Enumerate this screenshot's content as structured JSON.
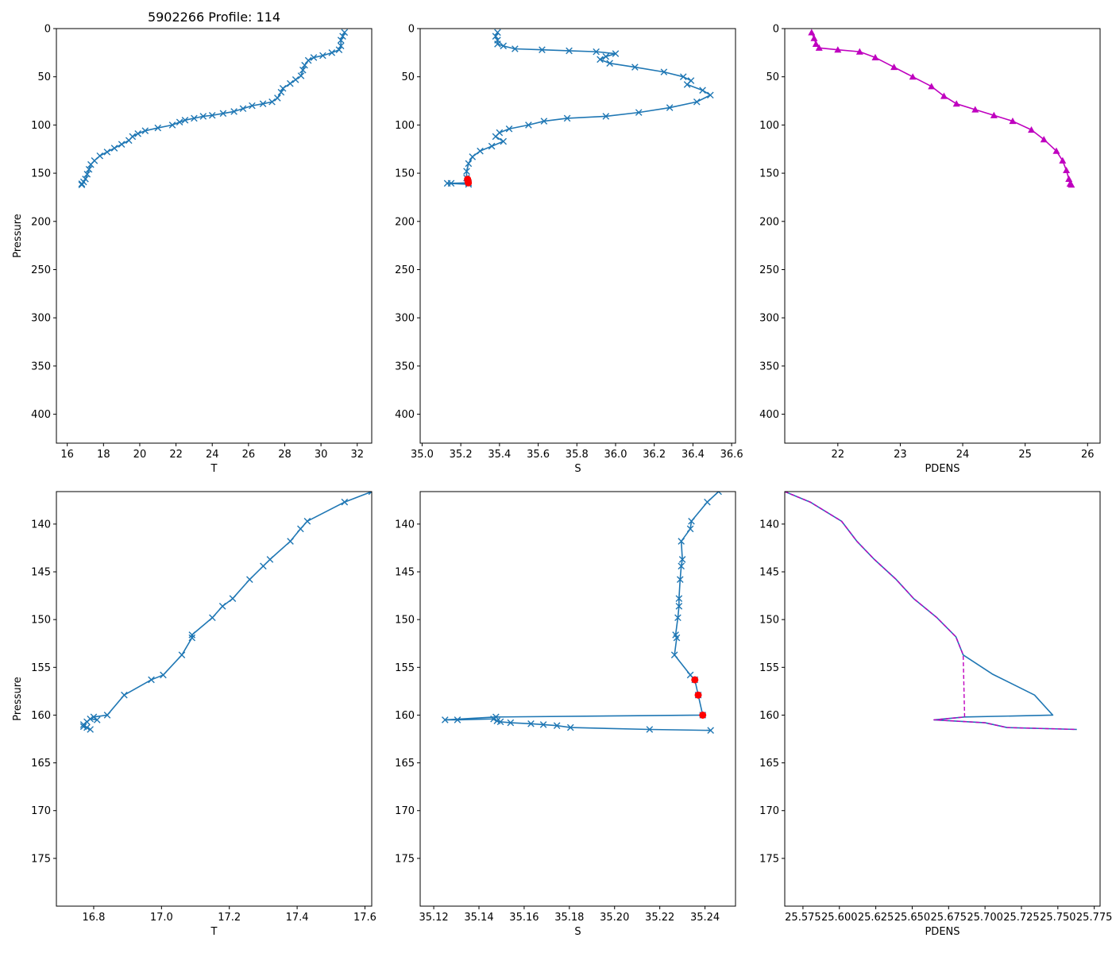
{
  "figure_title": "5902266 Profile: 114",
  "colors": {
    "line": "#1f77b4",
    "density": "#bf00bf",
    "flag": "#ff0000",
    "axes": "#000000",
    "background": "#ffffff"
  },
  "chart_data": [
    {
      "id": "temp-full",
      "type": "line",
      "title": "5902266 Profile: 114",
      "xlabel": "T",
      "ylabel": "Pressure",
      "xlim": [
        15.4,
        32.8
      ],
      "ylim": [
        430,
        0
      ],
      "xticks": [
        16,
        18,
        20,
        22,
        24,
        26,
        28,
        30,
        32
      ],
      "yticks": [
        0,
        50,
        100,
        150,
        200,
        250,
        300,
        350,
        400
      ],
      "tick_decimals": 0,
      "series": [
        {
          "name": "T",
          "marker": "x",
          "color": "#1f77b4",
          "points": [
            [
              31.3,
              4
            ],
            [
              31.2,
              8
            ],
            [
              31.1,
              12
            ],
            [
              31.1,
              18
            ],
            [
              31.0,
              22
            ],
            [
              30.6,
              25
            ],
            [
              30.1,
              28
            ],
            [
              29.6,
              30
            ],
            [
              29.3,
              33
            ],
            [
              29.1,
              38
            ],
            [
              29.0,
              43
            ],
            [
              28.9,
              49
            ],
            [
              28.6,
              53
            ],
            [
              28.3,
              57
            ],
            [
              27.9,
              62
            ],
            [
              27.8,
              66
            ],
            [
              27.6,
              72
            ],
            [
              27.3,
              76
            ],
            [
              26.8,
              78
            ],
            [
              26.2,
              80
            ],
            [
              25.7,
              83
            ],
            [
              25.2,
              86
            ],
            [
              24.6,
              88
            ],
            [
              24.0,
              90
            ],
            [
              23.5,
              91
            ],
            [
              23.0,
              93
            ],
            [
              22.5,
              95
            ],
            [
              22.2,
              97
            ],
            [
              21.8,
              100
            ],
            [
              21.0,
              103
            ],
            [
              20.3,
              106
            ],
            [
              19.9,
              109
            ],
            [
              19.6,
              112
            ],
            [
              19.4,
              116
            ],
            [
              19.0,
              120
            ],
            [
              18.6,
              124
            ],
            [
              18.2,
              128
            ],
            [
              17.8,
              132
            ],
            [
              17.5,
              137
            ],
            [
              17.3,
              141
            ],
            [
              17.2,
              146
            ],
            [
              17.1,
              151
            ],
            [
              17.0,
              156
            ],
            [
              16.9,
              159
            ],
            [
              16.8,
              161
            ],
            [
              16.8,
              162
            ]
          ]
        }
      ]
    },
    {
      "id": "sal-full",
      "type": "line",
      "title": "",
      "xlabel": "S",
      "ylabel": "",
      "xlim": [
        34.99,
        36.62
      ],
      "ylim": [
        430,
        0
      ],
      "xticks": [
        35.0,
        35.2,
        35.4,
        35.6,
        35.8,
        36.0,
        36.2,
        36.4,
        36.6
      ],
      "yticks": [
        0,
        50,
        100,
        150,
        200,
        250,
        300,
        350,
        400
      ],
      "tick_decimals": 1,
      "series": [
        {
          "name": "S",
          "marker": "x",
          "color": "#1f77b4",
          "points": [
            [
              35.39,
              4
            ],
            [
              35.38,
              8
            ],
            [
              35.39,
              12
            ],
            [
              35.39,
              16
            ],
            [
              35.42,
              18
            ],
            [
              35.48,
              21
            ],
            [
              35.62,
              22
            ],
            [
              35.76,
              23
            ],
            [
              35.9,
              24
            ],
            [
              36.0,
              26
            ],
            [
              35.95,
              29
            ],
            [
              35.92,
              32
            ],
            [
              35.97,
              36
            ],
            [
              36.1,
              40
            ],
            [
              36.25,
              45
            ],
            [
              36.35,
              50
            ],
            [
              36.39,
              54
            ],
            [
              36.37,
              58
            ],
            [
              36.45,
              64
            ],
            [
              36.49,
              69
            ],
            [
              36.42,
              76
            ],
            [
              36.28,
              82
            ],
            [
              36.12,
              87
            ],
            [
              35.95,
              91
            ],
            [
              35.75,
              93
            ],
            [
              35.63,
              96
            ],
            [
              35.55,
              100
            ],
            [
              35.45,
              104
            ],
            [
              35.4,
              108
            ],
            [
              35.38,
              112
            ],
            [
              35.42,
              117
            ],
            [
              35.36,
              122
            ],
            [
              35.3,
              127
            ],
            [
              35.26,
              133
            ],
            [
              35.24,
              140
            ],
            [
              35.23,
              148
            ],
            [
              35.23,
              155
            ],
            [
              35.235,
              157.9
            ],
            [
              35.24,
              160
            ],
            [
              35.15,
              160.5
            ],
            [
              35.13,
              160.5
            ],
            [
              35.24,
              161.5
            ]
          ]
        },
        {
          "name": "flagged",
          "marker": "o",
          "color": "#ff0000",
          "points": [
            [
              35.235,
              156.3
            ],
            [
              35.237,
              157.9
            ],
            [
              35.239,
              160.0
            ]
          ]
        }
      ]
    },
    {
      "id": "pdens-full",
      "type": "line",
      "title": "",
      "xlabel": "PDENS",
      "ylabel": "",
      "xlim": [
        21.15,
        26.2
      ],
      "ylim": [
        430,
        0
      ],
      "xticks": [
        22,
        23,
        24,
        25,
        26
      ],
      "yticks": [
        0,
        50,
        100,
        150,
        200,
        250,
        300,
        350,
        400
      ],
      "tick_decimals": 0,
      "series": [
        {
          "name": "PDENS",
          "marker": "triangle",
          "color": "#bf00bf",
          "points": [
            [
              21.58,
              4
            ],
            [
              21.62,
              10
            ],
            [
              21.65,
              16
            ],
            [
              21.7,
              20
            ],
            [
              22.0,
              22
            ],
            [
              22.35,
              24
            ],
            [
              22.6,
              30
            ],
            [
              22.9,
              40
            ],
            [
              23.2,
              50
            ],
            [
              23.5,
              60
            ],
            [
              23.7,
              70
            ],
            [
              23.9,
              78
            ],
            [
              24.2,
              84
            ],
            [
              24.5,
              90
            ],
            [
              24.8,
              96
            ],
            [
              25.1,
              105
            ],
            [
              25.3,
              115
            ],
            [
              25.5,
              127
            ],
            [
              25.6,
              137
            ],
            [
              25.66,
              147
            ],
            [
              25.7,
              156
            ],
            [
              25.72,
              161
            ],
            [
              25.74,
              162
            ]
          ]
        }
      ]
    },
    {
      "id": "temp-zoom",
      "type": "line",
      "title": "",
      "xlabel": "T",
      "ylabel": "Pressure",
      "xlim": [
        16.69,
        17.62
      ],
      "ylim": [
        180.0,
        136.6
      ],
      "xticks": [
        16.8,
        17.0,
        17.2,
        17.4,
        17.6
      ],
      "yticks": [
        140,
        145,
        150,
        155,
        160,
        165,
        170,
        175
      ],
      "tick_decimals": 1,
      "series": [
        {
          "name": "T",
          "marker": "x",
          "color": "#1f77b4",
          "points": [
            [
              17.62,
              136.6
            ],
            [
              17.54,
              137.7
            ],
            [
              17.43,
              139.7
            ],
            [
              17.41,
              140.5
            ],
            [
              17.38,
              141.8
            ],
            [
              17.32,
              143.7
            ],
            [
              17.3,
              144.4
            ],
            [
              17.26,
              145.8
            ],
            [
              17.21,
              147.8
            ],
            [
              17.18,
              148.6
            ],
            [
              17.15,
              149.8
            ],
            [
              17.09,
              151.6
            ],
            [
              17.09,
              151.9
            ],
            [
              17.06,
              153.7
            ],
            [
              17.005,
              155.8
            ],
            [
              16.97,
              156.3
            ],
            [
              16.89,
              157.9
            ],
            [
              16.84,
              160.0
            ],
            [
              16.8,
              160.2
            ],
            [
              16.81,
              160.5
            ],
            [
              16.79,
              160.4
            ],
            [
              16.78,
              160.7
            ],
            [
              16.77,
              161.0
            ],
            [
              16.78,
              161.3
            ],
            [
              16.79,
              161.5
            ],
            [
              16.77,
              161.2
            ]
          ]
        }
      ]
    },
    {
      "id": "sal-zoom",
      "type": "line",
      "title": "",
      "xlabel": "S",
      "ylabel": "",
      "xlim": [
        35.114,
        35.2535
      ],
      "ylim": [
        180.0,
        136.6
      ],
      "xticks": [
        35.12,
        35.14,
        35.16,
        35.18,
        35.2,
        35.22,
        35.24
      ],
      "yticks": [
        140,
        145,
        150,
        155,
        160,
        165,
        170,
        175
      ],
      "tick_decimals": 2,
      "series": [
        {
          "name": "S",
          "marker": "x",
          "color": "#1f77b4",
          "points": [
            [
              35.246,
              136.6
            ],
            [
              35.241,
              137.7
            ],
            [
              35.234,
              139.7
            ],
            [
              35.2335,
              140.5
            ],
            [
              35.2295,
              141.8
            ],
            [
              35.23,
              143.7
            ],
            [
              35.2295,
              144.4
            ],
            [
              35.229,
              145.8
            ],
            [
              35.2285,
              147.8
            ],
            [
              35.2285,
              148.6
            ],
            [
              35.228,
              149.8
            ],
            [
              35.227,
              151.6
            ],
            [
              35.2275,
              151.9
            ],
            [
              35.2265,
              153.7
            ],
            [
              35.2335,
              155.8
            ],
            [
              35.2355,
              156.3
            ],
            [
              35.237,
              157.9
            ],
            [
              35.239,
              160.0
            ],
            [
              35.1475,
              160.2
            ],
            [
              35.125,
              160.5
            ],
            [
              35.1305,
              160.5
            ],
            [
              35.1465,
              160.4
            ],
            [
              35.148,
              160.6
            ],
            [
              35.1495,
              160.7
            ],
            [
              35.154,
              160.8
            ],
            [
              35.163,
              160.9
            ],
            [
              35.1685,
              161.0
            ],
            [
              35.1745,
              161.1
            ],
            [
              35.1805,
              161.3
            ],
            [
              35.2155,
              161.5
            ],
            [
              35.2425,
              161.6
            ]
          ]
        },
        {
          "name": "flagged",
          "marker": "o",
          "color": "#ff0000",
          "points": [
            [
              35.2355,
              156.3
            ],
            [
              35.237,
              157.9
            ],
            [
              35.239,
              160.0
            ]
          ]
        }
      ]
    },
    {
      "id": "pdens-zoom",
      "type": "line",
      "title": "",
      "xlabel": "PDENS",
      "ylabel": "",
      "xlim": [
        25.5625,
        25.779
      ],
      "ylim": [
        180.0,
        136.6
      ],
      "xticks": [
        25.575,
        25.6,
        25.625,
        25.65,
        25.675,
        25.7,
        25.725,
        25.75,
        25.775
      ],
      "yticks": [
        140,
        145,
        150,
        155,
        160,
        165,
        170,
        175
      ],
      "tick_decimals": 3,
      "series": [
        {
          "name": "PDENS",
          "marker": "",
          "color": "#1f77b4",
          "points": [
            [
              25.5625,
              136.6
            ],
            [
              25.58,
              137.7
            ],
            [
              25.6015,
              139.7
            ],
            [
              25.612,
              141.8
            ],
            [
              25.624,
              143.7
            ],
            [
              25.639,
              145.8
            ],
            [
              25.651,
              147.8
            ],
            [
              25.667,
              149.8
            ],
            [
              25.68,
              151.8
            ],
            [
              25.685,
              153.7
            ],
            [
              25.705,
              155.7
            ],
            [
              25.734,
              157.9
            ],
            [
              25.7465,
              160.0
            ],
            [
              25.686,
              160.2
            ],
            [
              25.665,
              160.5
            ],
            [
              25.7,
              160.8
            ],
            [
              25.715,
              161.3
            ],
            [
              25.763,
              161.5
            ]
          ]
        },
        {
          "name": "PDENS-dashed",
          "marker": "",
          "color": "#bf00bf",
          "points": [
            [
              25.5625,
              136.6
            ],
            [
              25.58,
              137.7
            ],
            [
              25.6015,
              139.7
            ],
            [
              25.612,
              141.8
            ],
            [
              25.624,
              143.7
            ],
            [
              25.639,
              145.8
            ],
            [
              25.651,
              147.8
            ],
            [
              25.667,
              149.8
            ],
            [
              25.68,
              151.8
            ],
            [
              25.685,
              153.7
            ],
            [
              25.686,
              160.2
            ],
            [
              25.665,
              160.5
            ],
            [
              25.7,
              160.8
            ],
            [
              25.715,
              161.3
            ],
            [
              25.763,
              161.5
            ]
          ]
        }
      ]
    }
  ]
}
